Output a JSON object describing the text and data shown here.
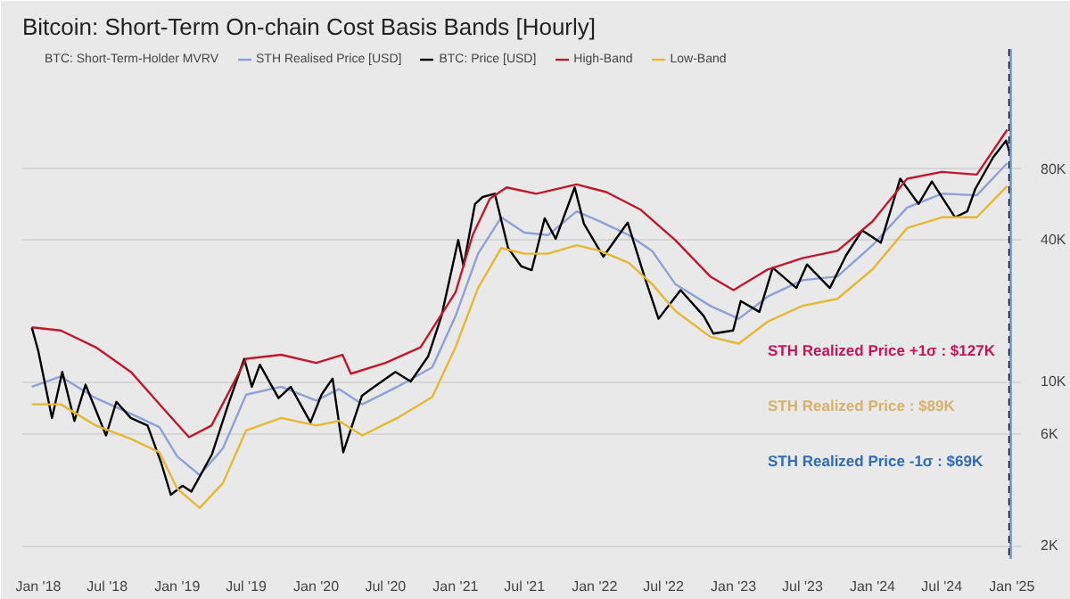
{
  "chart_data": {
    "type": "line",
    "title": "Bitcoin: Short-Term On-chain Cost Basis Bands [Hourly]",
    "log": "y",
    "grid": "y",
    "legend": "top",
    "marker": "none",
    "line_style": "solid",
    "xlim": [
      "2017-11-20",
      "2025-01-25"
    ],
    "xticks": [
      {
        "value": "2018-01-01",
        "label": "Jan '18"
      },
      {
        "value": "2018-07-01",
        "label": "Jul '18"
      },
      {
        "value": "2019-01-01",
        "label": "Jan '19"
      },
      {
        "value": "2019-07-01",
        "label": "Jul '19"
      },
      {
        "value": "2020-01-01",
        "label": "Jan '20"
      },
      {
        "value": "2020-07-01",
        "label": "Jul '20"
      },
      {
        "value": "2021-01-01",
        "label": "Jan '21"
      },
      {
        "value": "2021-07-01",
        "label": "Jul '21"
      },
      {
        "value": "2022-01-01",
        "label": "Jan '22"
      },
      {
        "value": "2022-07-01",
        "label": "Jul '22"
      },
      {
        "value": "2023-01-01",
        "label": "Jan '23"
      },
      {
        "value": "2023-07-01",
        "label": "Jul '23"
      },
      {
        "value": "2024-01-01",
        "label": "Jan '24"
      },
      {
        "value": "2024-07-01",
        "label": "Jul '24"
      },
      {
        "value": "2025-01-01",
        "label": "Jan '25"
      }
    ],
    "ylim": [
      1760,
      260000
    ],
    "yticks": [
      {
        "value": 2000,
        "label": "2K"
      },
      {
        "value": 6000,
        "label": "6K"
      },
      {
        "value": 10000,
        "label": "10K"
      },
      {
        "value": 40000,
        "label": "40K"
      },
      {
        "value": 80000,
        "label": "80K"
      }
    ],
    "ref_lines": [
      {
        "axis": "x",
        "value": "2024-12-26",
        "color": "#000000",
        "line_style": "dashed"
      },
      {
        "axis": "x",
        "value": "2024-12-29",
        "color": "#6f93d8",
        "line_style": "solid"
      }
    ],
    "annotations": [
      "STH Realized Price +1σ : $127K",
      "STH Realized Price : $89K",
      "STH Realized Price -1σ : $69K"
    ],
    "series": [
      {
        "name": "BTC: Short-Term-Holder MVRV",
        "color": "#1f2a6b"
      },
      {
        "name": "STH Realised Price [USD]",
        "color": "#8ea0d8",
        "x": [
          "2017-12-15",
          "2018-03-01",
          "2018-06-01",
          "2018-09-01",
          "2018-11-15",
          "2019-01-01",
          "2019-03-01",
          "2019-05-01",
          "2019-07-01",
          "2019-10-01",
          "2020-01-01",
          "2020-03-01",
          "2020-05-01",
          "2020-08-01",
          "2020-11-01",
          "2021-01-01",
          "2021-03-01",
          "2021-05-01",
          "2021-07-01",
          "2021-09-01",
          "2021-11-15",
          "2022-01-15",
          "2022-04-01",
          "2022-06-01",
          "2022-08-01",
          "2022-11-01",
          "2023-01-15",
          "2023-04-01",
          "2023-07-01",
          "2023-10-01",
          "2024-01-01",
          "2024-04-01",
          "2024-07-01",
          "2024-10-01",
          "2024-12-20"
        ],
        "values": [
          9500,
          10500,
          8500,
          7300,
          6400,
          4800,
          4000,
          5200,
          8800,
          9500,
          8300,
          9300,
          8000,
          9500,
          11500,
          19000,
          35000,
          50000,
          43000,
          42000,
          53000,
          48000,
          42000,
          36000,
          26000,
          21000,
          18500,
          23000,
          27000,
          28000,
          38000,
          55000,
          63000,
          62000,
          85000
        ]
      },
      {
        "name": "BTC: Price [USD]",
        "color": "#000000",
        "x": [
          "2017-12-15",
          "2018-01-01",
          "2018-02-06",
          "2018-03-05",
          "2018-04-06",
          "2018-05-05",
          "2018-06-28",
          "2018-07-25",
          "2018-09-01",
          "2018-10-15",
          "2018-11-20",
          "2018-12-15",
          "2019-01-15",
          "2019-02-07",
          "2019-04-02",
          "2019-05-15",
          "2019-06-26",
          "2019-07-16",
          "2019-08-06",
          "2019-09-24",
          "2019-10-26",
          "2019-12-17",
          "2020-01-15",
          "2020-02-13",
          "2020-03-12",
          "2020-04-30",
          "2020-06-01",
          "2020-07-27",
          "2020-09-05",
          "2020-10-21",
          "2020-11-25",
          "2021-01-08",
          "2021-01-22",
          "2021-02-21",
          "2021-03-13",
          "2021-04-14",
          "2021-05-19",
          "2021-06-22",
          "2021-07-20",
          "2021-08-23",
          "2021-09-21",
          "2021-11-10",
          "2021-12-04",
          "2022-01-24",
          "2022-03-29",
          "2022-05-12",
          "2022-06-18",
          "2022-08-15",
          "2022-10-15",
          "2022-11-09",
          "2022-12-31",
          "2023-01-20",
          "2023-03-10",
          "2023-04-14",
          "2023-06-15",
          "2023-07-13",
          "2023-09-11",
          "2023-10-24",
          "2023-12-05",
          "2024-01-23",
          "2024-03-14",
          "2024-05-01",
          "2024-06-05",
          "2024-08-05",
          "2024-09-06",
          "2024-09-27",
          "2024-11-13",
          "2024-12-17",
          "2024-12-25"
        ],
        "values": [
          17000,
          13500,
          7000,
          11000,
          6800,
          9700,
          5900,
          8200,
          7000,
          6500,
          4500,
          3300,
          3600,
          3400,
          4900,
          8000,
          12500,
          9500,
          11800,
          8500,
          9500,
          6700,
          8800,
          10300,
          5000,
          8700,
          9500,
          11000,
          10000,
          12800,
          19000,
          40000,
          31000,
          57000,
          61000,
          63000,
          37000,
          31000,
          29800,
          49500,
          40500,
          67000,
          47000,
          34000,
          47500,
          28000,
          18500,
          24500,
          19000,
          16000,
          16500,
          22000,
          19800,
          30500,
          25000,
          31500,
          25000,
          34500,
          44000,
          39000,
          73000,
          57000,
          71000,
          50000,
          53000,
          66000,
          90000,
          106000,
          96000
        ]
      },
      {
        "name": "High-Band",
        "color": "#c0182a",
        "x": [
          "2017-12-15",
          "2018-03-01",
          "2018-06-01",
          "2018-09-01",
          "2018-12-01",
          "2019-02-01",
          "2019-04-01",
          "2019-07-01",
          "2019-10-01",
          "2020-01-01",
          "2020-03-10",
          "2020-04-01",
          "2020-07-01",
          "2020-10-01",
          "2021-01-01",
          "2021-02-15",
          "2021-04-01",
          "2021-05-15",
          "2021-08-01",
          "2021-11-15",
          "2022-02-01",
          "2022-05-01",
          "2022-08-01",
          "2022-11-01",
          "2023-01-01",
          "2023-04-01",
          "2023-07-01",
          "2023-10-01",
          "2024-01-01",
          "2024-04-01",
          "2024-07-01",
          "2024-10-01",
          "2024-12-20"
        ],
        "values": [
          17000,
          16500,
          14000,
          11000,
          7500,
          5800,
          6500,
          12500,
          13000,
          12000,
          13000,
          10800,
          12000,
          14000,
          24000,
          42000,
          60000,
          67000,
          63000,
          69000,
          64000,
          54000,
          40000,
          28000,
          24500,
          30000,
          33500,
          36000,
          48000,
          73000,
          78000,
          76000,
          118000
        ]
      },
      {
        "name": "Low-Band",
        "color": "#e6b730",
        "x": [
          "2017-12-15",
          "2018-03-01",
          "2018-06-01",
          "2018-09-01",
          "2018-11-15",
          "2019-01-01",
          "2019-03-01",
          "2019-05-01",
          "2019-07-01",
          "2019-10-01",
          "2020-01-01",
          "2020-03-01",
          "2020-05-01",
          "2020-08-01",
          "2020-11-01",
          "2021-01-01",
          "2021-03-01",
          "2021-05-01",
          "2021-07-01",
          "2021-09-01",
          "2021-11-15",
          "2022-01-15",
          "2022-04-01",
          "2022-06-01",
          "2022-08-01",
          "2022-11-01",
          "2023-01-15",
          "2023-04-01",
          "2023-07-01",
          "2023-10-01",
          "2024-01-01",
          "2024-04-01",
          "2024-07-01",
          "2024-10-01",
          "2024-12-20"
        ],
        "values": [
          8000,
          8000,
          6500,
          5700,
          5000,
          3500,
          2900,
          3700,
          6200,
          7000,
          6500,
          6800,
          5900,
          7000,
          8600,
          14000,
          25000,
          37000,
          35000,
          35000,
          38000,
          36000,
          32000,
          26000,
          20000,
          15500,
          14500,
          18000,
          21000,
          22500,
          30000,
          45000,
          50000,
          50000,
          68000
        ]
      }
    ]
  }
}
